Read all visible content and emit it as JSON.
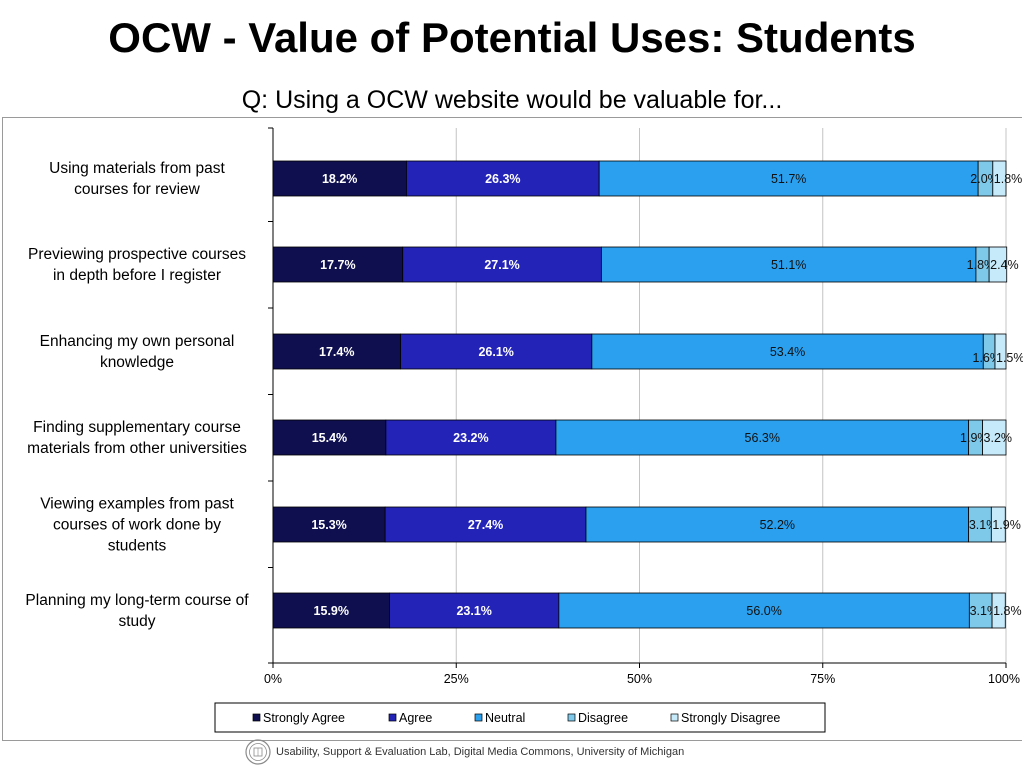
{
  "header": {
    "title": "OCW - Value of Potential Uses: Students",
    "subtitle": "Q: Using a OCW website would be valuable for..."
  },
  "footer": {
    "credit": "Usability, Support & Evaluation Lab, Digital Media Commons, University of Michigan"
  },
  "chart_data": {
    "type": "bar",
    "orientation": "horizontal",
    "stacked": true,
    "categories": [
      "Using materials from past courses for review",
      "Previewing prospective courses in depth before I register",
      "Enhancing my own personal knowledge",
      "Finding supplementary course materials from other universities",
      "Viewing examples from past courses of work done by students",
      "Planning my long-term course of study"
    ],
    "category_lines": [
      [
        "Using materials from past",
        "courses for review"
      ],
      [
        "Previewing prospective courses",
        "in depth before I register"
      ],
      [
        "Enhancing my own personal",
        "knowledge"
      ],
      [
        "Finding supplementary course",
        "materials from other universities"
      ],
      [
        "Viewing examples from past",
        "courses of work done by",
        "students"
      ],
      [
        "Planning my long-term course of",
        "study"
      ]
    ],
    "series": [
      {
        "name": "Strongly Agree",
        "color": "#0f0f4f",
        "values": [
          18.2,
          17.7,
          17.4,
          15.4,
          15.3,
          15.9
        ],
        "labels": [
          "18.2%",
          "17.7%",
          "17.4%",
          "15.4%",
          "15.3%",
          "15.9%"
        ]
      },
      {
        "name": "Agree",
        "color": "#2323b8",
        "values": [
          26.3,
          27.1,
          26.1,
          23.2,
          27.4,
          23.1
        ],
        "labels": [
          "26.3%",
          "27.1%",
          "26.1%",
          "23.2%",
          "27.4%",
          "23.1%"
        ]
      },
      {
        "name": "Neutral",
        "color": "#2aa0ee",
        "values": [
          51.7,
          51.1,
          53.4,
          56.3,
          52.2,
          56.0
        ],
        "labels": [
          "51.7%",
          "51.1%",
          "53.4%",
          "56.3%",
          "52.2%",
          "56.0%"
        ]
      },
      {
        "name": "Disagree",
        "color": "#7ec8ea",
        "values": [
          2.0,
          1.8,
          1.6,
          1.9,
          3.1,
          3.1
        ],
        "labels": [
          "2.0%",
          "1.8%",
          "1.6%",
          "1.9%",
          "3.1%",
          "3.1%"
        ]
      },
      {
        "name": "Strongly Disagree",
        "color": "#c6eafa",
        "values": [
          1.8,
          2.4,
          1.5,
          3.2,
          1.9,
          1.8
        ],
        "labels": [
          "1.8%",
          "2.4%",
          "1.5%",
          "3.2%",
          "1.9%",
          "1.8%"
        ]
      }
    ],
    "xlim": [
      0,
      100
    ],
    "xticks": [
      0,
      25,
      50,
      75,
      100
    ],
    "xtick_labels": [
      "0%",
      "25%",
      "50%",
      "75%",
      "100%"
    ],
    "grid": true,
    "legend_position": "bottom"
  }
}
